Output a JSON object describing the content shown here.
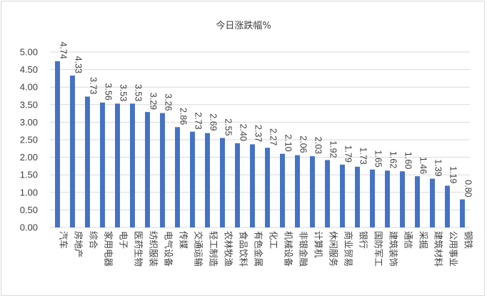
{
  "chart_data": {
    "type": "bar",
    "title": "今日涨跌幅%",
    "xlabel": "",
    "ylabel": "",
    "ylim": [
      0,
      5
    ],
    "ytick_step": 0.5,
    "yticks": [
      "0.00",
      "0.50",
      "1.00",
      "1.50",
      "2.00",
      "2.50",
      "3.00",
      "3.50",
      "4.00",
      "4.50",
      "5.00"
    ],
    "grid": true,
    "legend": "none",
    "bar_color": "#4472C4",
    "categories": [
      "汽车",
      "房地产",
      "综合",
      "家用电器",
      "电子",
      "医药生物",
      "纺织服装",
      "电气设备",
      "传媒",
      "交通运输",
      "轻工制造",
      "农林牧渔",
      "食品饮料",
      "有色金属",
      "化工",
      "机械设备",
      "非银金融",
      "计算机",
      "休闲服务",
      "商业贸易",
      "银行",
      "国防军工",
      "建筑装饰",
      "通信",
      "采掘",
      "建筑材料",
      "公用事业",
      "钢铁"
    ],
    "values": [
      4.74,
      4.33,
      3.73,
      3.56,
      3.53,
      3.53,
      3.29,
      3.26,
      2.86,
      2.73,
      2.69,
      2.55,
      2.4,
      2.37,
      2.27,
      2.1,
      2.06,
      2.03,
      1.92,
      1.79,
      1.73,
      1.65,
      1.62,
      1.6,
      1.46,
      1.39,
      1.19,
      0.8
    ],
    "data_labels": [
      "4.74",
      "4.33",
      "3.73",
      "3.56",
      "3.53",
      "3.53",
      "3.29",
      "3.26",
      "2.86",
      "2.73",
      "2.69",
      "2.55",
      "2.40",
      "2.37",
      "2.27",
      "2.10",
      "2.06",
      "2.03",
      "1.92",
      "1.79",
      "1.73",
      "1.65",
      "1.62",
      "1.60",
      "1.46",
      "1.39",
      "1.19",
      "0.80"
    ]
  }
}
